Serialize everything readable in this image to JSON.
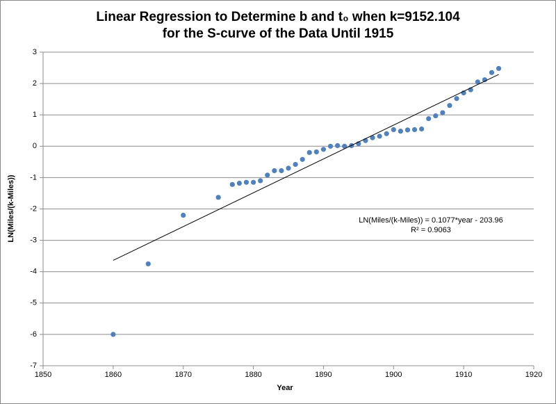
{
  "chart_data": {
    "type": "scatter",
    "title": [
      "Linear Regression to Determine b and t₀ when k=9152.104",
      "for the S-curve of the Data Until 1915"
    ],
    "x_label": "Year",
    "y_label": "LN(Miles/(k-Miles))",
    "annotation": [
      "LN(Miles/(k-Miles)) = 0.1077*year - 203.96",
      "R² = 0.9063"
    ],
    "x": [
      1860,
      1865,
      1870,
      1875,
      1877,
      1878,
      1879,
      1880,
      1881,
      1882,
      1883,
      1884,
      1885,
      1886,
      1887,
      1888,
      1889,
      1890,
      1891,
      1892,
      1893,
      1894,
      1895,
      1896,
      1897,
      1898,
      1899,
      1900,
      1901,
      1902,
      1903,
      1904,
      1905,
      1906,
      1907,
      1908,
      1909,
      1910,
      1911,
      1912,
      1913,
      1914,
      1915
    ],
    "values": [
      -6.0,
      -3.75,
      -2.2,
      -1.63,
      -1.22,
      -1.18,
      -1.15,
      -1.15,
      -1.1,
      -0.92,
      -0.78,
      -0.78,
      -0.7,
      -0.58,
      -0.42,
      -0.2,
      -0.18,
      -0.1,
      0.0,
      0.02,
      0.0,
      0.02,
      0.08,
      0.18,
      0.27,
      0.32,
      0.4,
      0.53,
      0.48,
      0.52,
      0.53,
      0.55,
      0.88,
      0.97,
      1.07,
      1.3,
      1.52,
      1.7,
      1.8,
      2.05,
      2.12,
      2.35,
      2.48
    ],
    "color": "#4f81bd",
    "trendline": {
      "x": [
        1860,
        1915
      ],
      "values": [
        -3.64,
        2.29
      ],
      "color": "#000000"
    },
    "xlim": [
      1850,
      1920
    ],
    "xticks": [
      1850,
      1860,
      1870,
      1880,
      1890,
      1900,
      1910,
      1920
    ],
    "ylim": [
      -7,
      3
    ],
    "yticks": [
      -7,
      -6,
      -5,
      -4,
      -3,
      -2,
      -1,
      0,
      1,
      2,
      3
    ],
    "grid": true
  }
}
